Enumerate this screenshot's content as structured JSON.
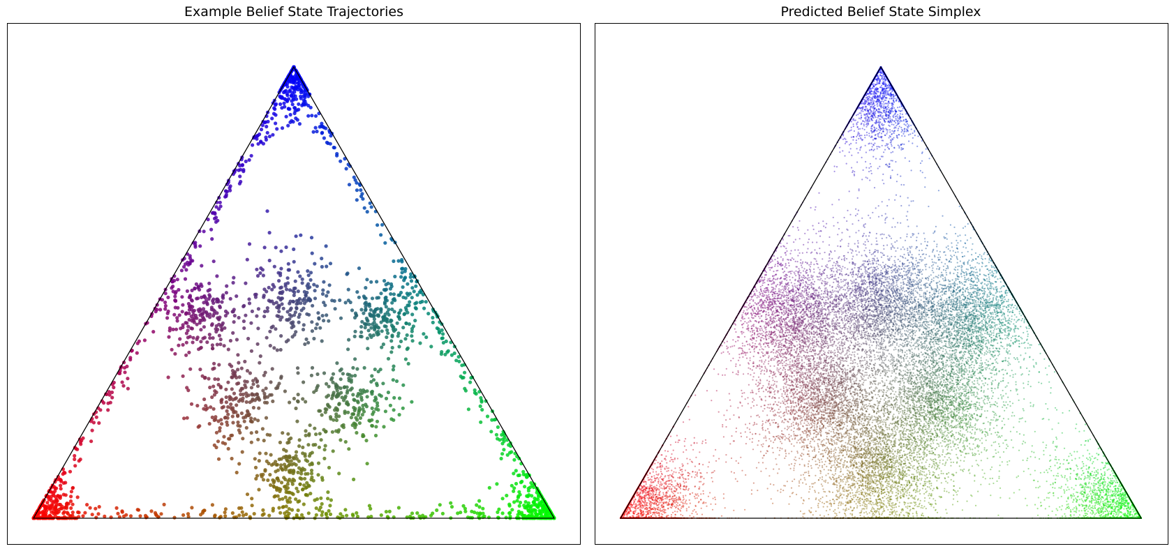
{
  "chart_data": [
    {
      "type": "scatter",
      "title": "Example Belief State Trajectories",
      "xlabel": "",
      "ylabel": "",
      "grid": false,
      "axes_ticks": false,
      "simplex": {
        "vertices": [
          {
            "name": "top",
            "color": "#0000ff"
          },
          {
            "name": "bottom-left",
            "color": "#ff0000"
          },
          {
            "name": "bottom-right",
            "color": "#00ff00"
          }
        ],
        "coordinate_system": "barycentric (top, bottom-left, bottom-right)"
      },
      "point_style": {
        "size": "medium",
        "opacity": 0.85
      },
      "clusters": [
        {
          "center": [
            0.97,
            0.015,
            0.015
          ],
          "spread": 0.03
        },
        {
          "center": [
            0.015,
            0.97,
            0.015
          ],
          "spread": 0.03
        },
        {
          "center": [
            0.015,
            0.015,
            0.97
          ],
          "spread": 0.03
        },
        {
          "center": [
            0.45,
            0.1,
            0.45
          ],
          "spread": 0.05
        },
        {
          "center": [
            0.45,
            0.45,
            0.1
          ],
          "spread": 0.05
        },
        {
          "center": [
            0.1,
            0.45,
            0.45
          ],
          "spread": 0.05
        },
        {
          "center": [
            0.48,
            0.26,
            0.26
          ],
          "spread": 0.06
        },
        {
          "center": [
            0.26,
            0.48,
            0.26
          ],
          "spread": 0.06
        },
        {
          "center": [
            0.26,
            0.26,
            0.48
          ],
          "spread": 0.06
        }
      ],
      "edge_points": true,
      "n_points_approx": 2600
    },
    {
      "type": "scatter",
      "title": "Predicted Belief State Simplex",
      "xlabel": "",
      "ylabel": "",
      "grid": false,
      "axes_ticks": false,
      "simplex": {
        "vertices": [
          {
            "name": "top",
            "color": "#0000ff"
          },
          {
            "name": "bottom-left",
            "color": "#ff0000"
          },
          {
            "name": "bottom-right",
            "color": "#00ff00"
          }
        ],
        "coordinate_system": "barycentric (top, bottom-left, bottom-right)"
      },
      "point_style": {
        "size": "small",
        "opacity": 0.45
      },
      "noise": 0.07,
      "clusters": [
        {
          "center": [
            0.97,
            0.015,
            0.015
          ],
          "spread": 0.05
        },
        {
          "center": [
            0.015,
            0.97,
            0.015
          ],
          "spread": 0.05
        },
        {
          "center": [
            0.015,
            0.015,
            0.97
          ],
          "spread": 0.05
        },
        {
          "center": [
            0.45,
            0.1,
            0.45
          ],
          "spread": 0.07
        },
        {
          "center": [
            0.45,
            0.45,
            0.1
          ],
          "spread": 0.07
        },
        {
          "center": [
            0.1,
            0.45,
            0.45
          ],
          "spread": 0.07
        },
        {
          "center": [
            0.48,
            0.26,
            0.26
          ],
          "spread": 0.07
        },
        {
          "center": [
            0.26,
            0.48,
            0.26
          ],
          "spread": 0.07
        },
        {
          "center": [
            0.26,
            0.26,
            0.48
          ],
          "spread": 0.07
        }
      ],
      "n_points_approx": 26000
    }
  ]
}
